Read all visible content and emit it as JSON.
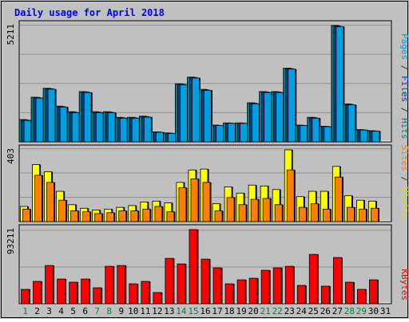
{
  "chart_data": {
    "type": "bar",
    "title": "Daily usage for April 2018",
    "categories": [
      "1",
      "2",
      "3",
      "4",
      "5",
      "6",
      "7",
      "8",
      "9",
      "10",
      "11",
      "12",
      "13",
      "14",
      "15",
      "16",
      "17",
      "18",
      "19",
      "20",
      "21",
      "22",
      "23",
      "24",
      "25",
      "26",
      "27",
      "28",
      "29",
      "30",
      "31"
    ],
    "weekend_days": [
      1,
      7,
      8,
      14,
      15,
      21,
      22,
      28,
      29
    ],
    "panels": [
      {
        "id": "top",
        "ymax": 5211,
        "ymax_label": "5211",
        "right_labels": [
          {
            "text": "Pages",
            "color": "#00a0e0"
          },
          {
            "text": " / ",
            "color": "#333333"
          },
          {
            "text": "Files",
            "color": "#0040a0"
          },
          {
            "text": " / ",
            "color": "#333333"
          },
          {
            "text": "Hits",
            "color": "#008080"
          }
        ],
        "series": [
          {
            "name": "Hits",
            "color": "#008080",
            "values": [
              1000,
              2000,
              2400,
              1600,
              1350,
              2250,
              1350,
              1350,
              1100,
              1100,
              1150,
              450,
              400,
              2600,
              2900,
              2350,
              750,
              850,
              850,
              1750,
              2250,
              2250,
              3300,
              750,
              1100,
              700,
              5211,
              1700,
              550,
              500,
              null
            ]
          },
          {
            "name": "Files",
            "color": "#0040a0",
            "values": [
              980,
              1980,
              2380,
              1580,
              1330,
              2230,
              1330,
              1330,
              1080,
              1080,
              1130,
              440,
              390,
              2580,
              2880,
              2330,
              740,
              840,
              840,
              1730,
              2230,
              2230,
              3280,
              740,
              1080,
              690,
              5180,
              1680,
              540,
              490,
              null
            ]
          },
          {
            "name": "Pages",
            "color": "#00a0e0",
            "values": [
              960,
              1960,
              2360,
              1560,
              1310,
              2210,
              1310,
              1310,
              1060,
              1060,
              1110,
              430,
              380,
              2560,
              2860,
              2310,
              730,
              830,
              830,
              1710,
              2210,
              2210,
              3260,
              730,
              1060,
              680,
              5160,
              1660,
              530,
              480,
              null
            ]
          }
        ]
      },
      {
        "id": "middle",
        "ymax": 403,
        "ymax_label": "403",
        "right_labels": [
          {
            "text": "Sites",
            "color": "#ff8000"
          },
          {
            "text": " / ",
            "color": "#333333"
          },
          {
            "text": "Visits",
            "color": "#e0e000"
          }
        ],
        "series": [
          {
            "name": "Visits",
            "color": "#ffff00",
            "values": [
              85,
              320,
              280,
              170,
              95,
              75,
              65,
              70,
              80,
              90,
              110,
              115,
              105,
              220,
              290,
              295,
              100,
              195,
              160,
              205,
              200,
              180,
              403,
              140,
              170,
              170,
              310,
              145,
              120,
              115,
              null
            ]
          },
          {
            "name": "Sites",
            "color": "#ff8000",
            "values": [
              70,
              260,
              220,
              120,
              60,
              55,
              45,
              50,
              60,
              60,
              70,
              85,
              55,
              190,
              240,
              220,
              60,
              135,
              95,
              125,
              130,
              95,
              290,
              80,
              100,
              70,
              250,
              80,
              70,
              75,
              null
            ]
          }
        ]
      },
      {
        "id": "bottom",
        "ymax": 93211,
        "ymax_label": "93211",
        "right_labels": [
          {
            "text": "KBytes",
            "color": "#ff0000"
          }
        ],
        "series": [
          {
            "name": "KBytes",
            "color": "#ff0000",
            "values": [
              18000,
              28000,
              48000,
              31000,
              27000,
              31000,
              20000,
              47000,
              48000,
              25000,
              28000,
              14000,
              57000,
              50000,
              93211,
              56000,
              45000,
              25000,
              30000,
              32000,
              42000,
              45000,
              47000,
              23000,
              62000,
              22000,
              58000,
              27000,
              18000,
              30000,
              null
            ]
          }
        ]
      }
    ],
    "colors": {
      "background": "#c0c0c0",
      "title": "#0000ff",
      "axis_text": "#000000",
      "weekend_text": "#008040",
      "grid": "#808080"
    }
  }
}
